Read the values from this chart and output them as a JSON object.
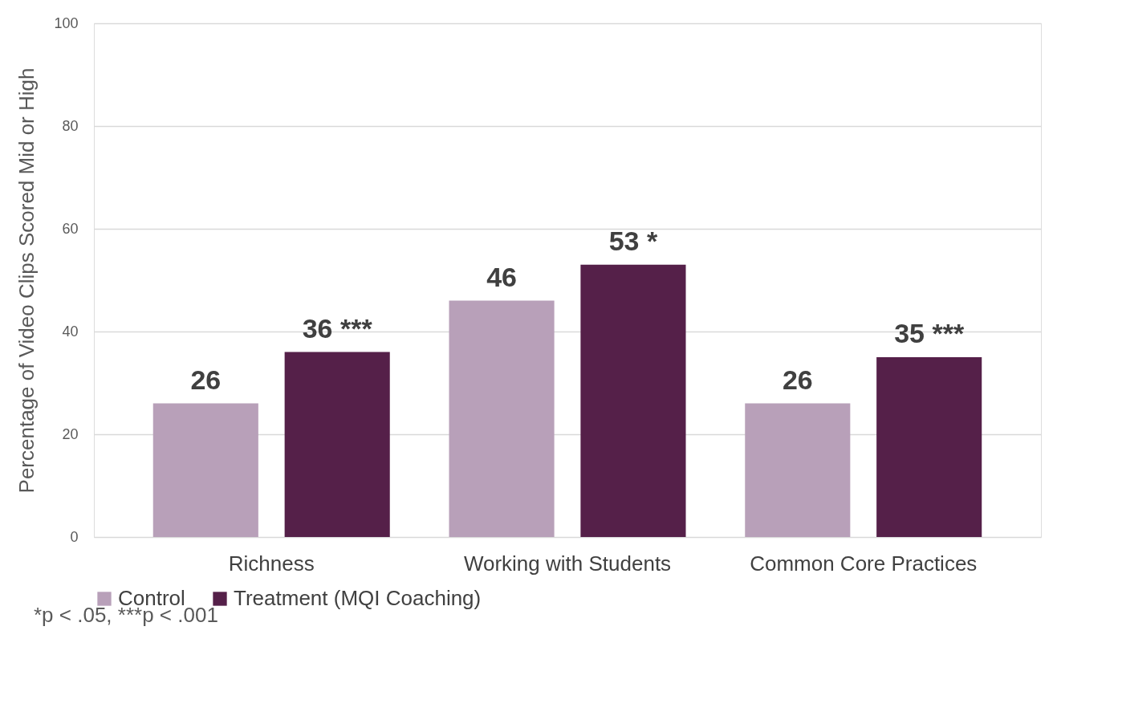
{
  "chart_data": {
    "type": "bar",
    "ylabel": "Percentage of  Video Clips Scored Mid or High",
    "categories": [
      "Richness",
      "Working with Students",
      "Common Core Practices"
    ],
    "series": [
      {
        "name": "Control",
        "color": "#b8a0b9",
        "values": [
          26,
          46,
          26
        ],
        "value_labels": [
          "26",
          "46",
          "26"
        ]
      },
      {
        "name": "Treatment (MQI Coaching)",
        "color": "#552049",
        "values": [
          36,
          53,
          35
        ],
        "value_labels": [
          "36 ***",
          "53 *",
          "35 ***"
        ]
      }
    ],
    "ylim": [
      0,
      100
    ],
    "yticks": [
      0,
      20,
      40,
      60,
      80,
      100
    ],
    "grid": "y",
    "legend": "bottom",
    "annotations": [
      "*p < .05, ***p < .001"
    ]
  }
}
